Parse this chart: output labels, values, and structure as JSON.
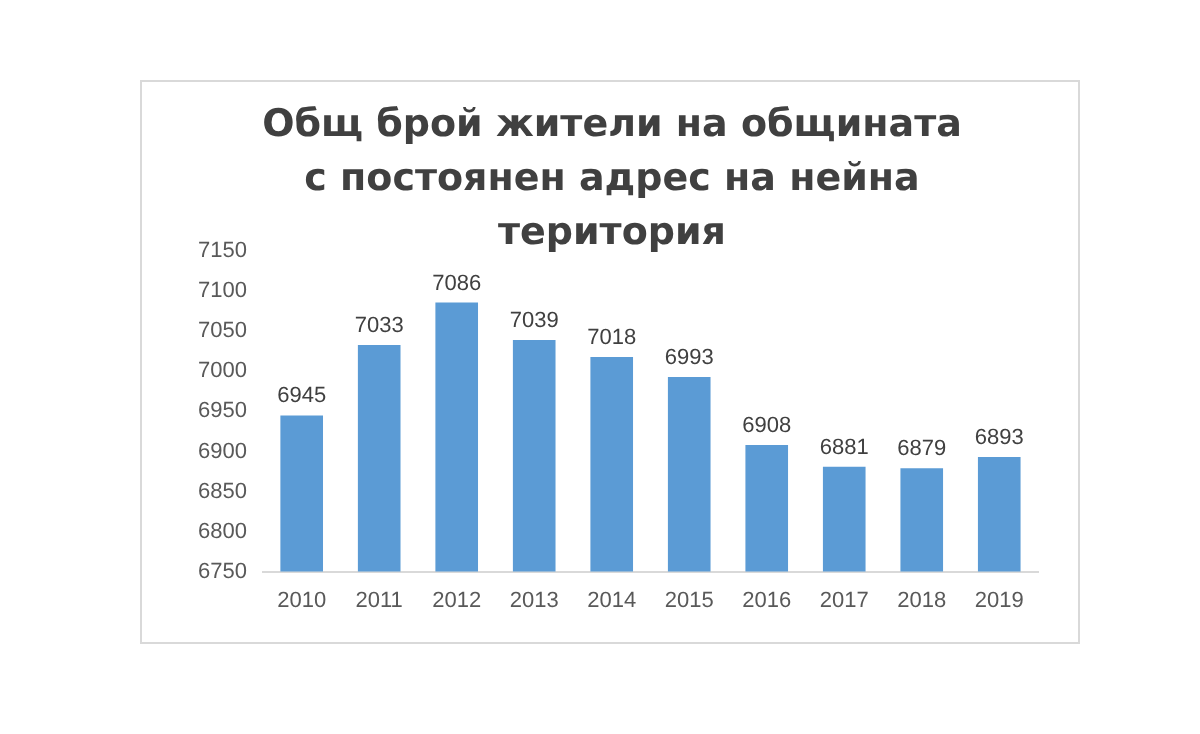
{
  "chart_data": {
    "type": "bar",
    "title": "Общ брой жители на общината с постоянен адрес на нейна територия",
    "categories": [
      "2010",
      "2011",
      "2012",
      "2013",
      "2014",
      "2015",
      "2016",
      "2017",
      "2018",
      "2019"
    ],
    "values": [
      6945,
      7033,
      7086,
      7039,
      7018,
      6993,
      6908,
      6881,
      6879,
      6893
    ],
    "color": "#5b9bd5",
    "ylim": [
      6750,
      7150
    ],
    "yticks": [
      6750,
      6800,
      6850,
      6900,
      6950,
      7000,
      7050,
      7100,
      7150
    ],
    "grid": false,
    "legend": false,
    "data_labels": true
  }
}
